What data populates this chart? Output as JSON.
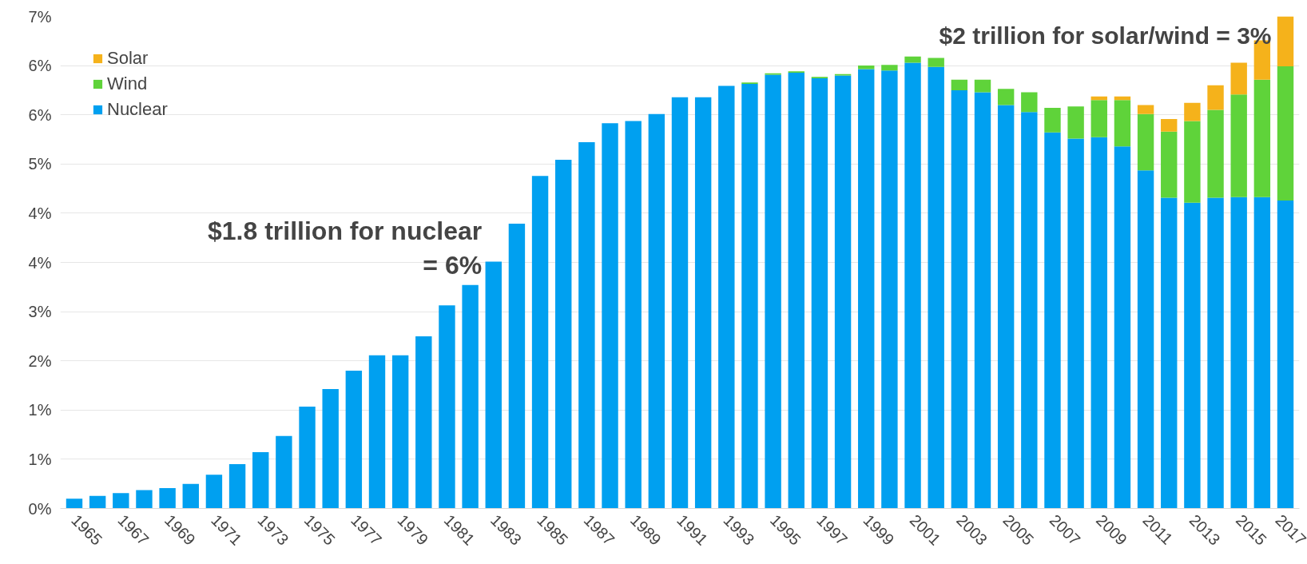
{
  "chart_data": {
    "type": "bar",
    "stacked": true,
    "categories": [
      "1965",
      null,
      "1967",
      null,
      "1969",
      null,
      "1971",
      null,
      "1973",
      null,
      "1975",
      null,
      "1977",
      null,
      "1979",
      null,
      "1981",
      null,
      "1983",
      null,
      "1985",
      null,
      "1987",
      null,
      "1989",
      null,
      "1991",
      null,
      "1993",
      null,
      "1995",
      null,
      "1997",
      null,
      "1999",
      null,
      "2001",
      null,
      "2003",
      null,
      "2005",
      null,
      "2007",
      null,
      "2009",
      null,
      "2011",
      null,
      "2013",
      null,
      "2015",
      null,
      "2017"
    ],
    "series": [
      {
        "name": "Nuclear",
        "color": "#00a0f0",
        "values": [
          0.14,
          0.18,
          0.22,
          0.26,
          0.29,
          0.35,
          0.48,
          0.63,
          0.8,
          1.03,
          1.45,
          1.7,
          1.96,
          2.18,
          2.18,
          2.45,
          2.89,
          3.18,
          3.51,
          4.05,
          4.73,
          4.96,
          5.21,
          5.48,
          5.51,
          5.61,
          5.85,
          5.85,
          6.01,
          6.04,
          6.17,
          6.2,
          6.12,
          6.16,
          6.25,
          6.23,
          6.34,
          6.28,
          5.95,
          5.92,
          5.74,
          5.64,
          5.35,
          5.26,
          5.28,
          5.15,
          4.81,
          4.42,
          4.35,
          4.42,
          4.43,
          4.43,
          4.38
        ]
      },
      {
        "name": "Wind",
        "color": "#5fd33a",
        "values": [
          null,
          null,
          null,
          null,
          null,
          null,
          null,
          null,
          null,
          null,
          null,
          null,
          null,
          null,
          null,
          null,
          null,
          null,
          null,
          null,
          null,
          null,
          null,
          null,
          null,
          null,
          null,
          null,
          null,
          0.02,
          0.02,
          0.02,
          0.02,
          0.02,
          0.05,
          0.08,
          0.09,
          0.13,
          0.15,
          0.18,
          0.23,
          0.28,
          0.35,
          0.46,
          0.53,
          0.66,
          0.8,
          0.94,
          1.16,
          1.25,
          1.46,
          1.67,
          1.91
        ]
      },
      {
        "name": "Solar",
        "color": "#f5b21b",
        "values": [
          null,
          null,
          null,
          null,
          null,
          null,
          null,
          null,
          null,
          null,
          null,
          null,
          null,
          null,
          null,
          null,
          null,
          null,
          null,
          null,
          null,
          null,
          null,
          null,
          null,
          null,
          null,
          null,
          null,
          null,
          null,
          null,
          null,
          null,
          null,
          null,
          null,
          null,
          null,
          null,
          null,
          null,
          null,
          null,
          0.05,
          0.05,
          0.13,
          0.18,
          0.26,
          0.35,
          0.45,
          0.56,
          0.71
        ]
      }
    ],
    "ylim": [
      0,
      7
    ],
    "yticks": [
      {
        "value": 0,
        "label": "0%"
      },
      {
        "value": 0.7,
        "label": "1%"
      },
      {
        "value": 1.4,
        "label": "1%"
      },
      {
        "value": 2.1,
        "label": "2%"
      },
      {
        "value": 2.8,
        "label": "3%"
      },
      {
        "value": 3.5,
        "label": "4%"
      },
      {
        "value": 4.2,
        "label": "4%"
      },
      {
        "value": 4.9,
        "label": "5%"
      },
      {
        "value": 5.6,
        "label": "6%"
      },
      {
        "value": 6.3,
        "label": "6%"
      },
      {
        "value": 7.0,
        "label": "7%"
      }
    ],
    "grid": "y",
    "legend": "top left",
    "annotations": [
      "$2 trillion for solar/wind = 3%",
      "$1.8 trillion for nuclear\n= 6%"
    ]
  }
}
